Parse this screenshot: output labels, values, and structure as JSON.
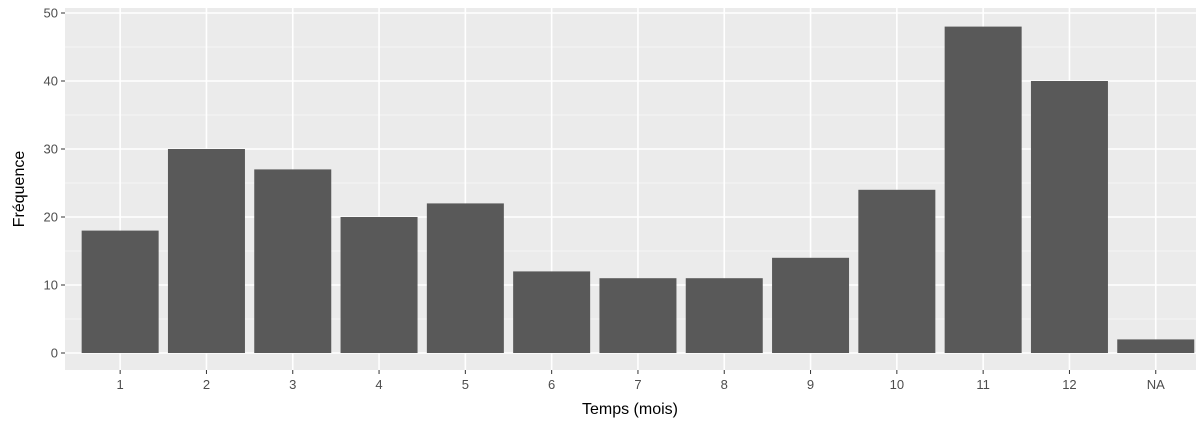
{
  "chart_data": {
    "type": "bar",
    "title": "",
    "xlabel": "Temps (mois)",
    "ylabel": "Fréquence",
    "categories": [
      "1",
      "2",
      "3",
      "4",
      "5",
      "6",
      "7",
      "8",
      "9",
      "10",
      "11",
      "12",
      "NA"
    ],
    "values": [
      18,
      30,
      27,
      20,
      22,
      12,
      11,
      11,
      14,
      24,
      48,
      40,
      2
    ],
    "ylim": [
      0,
      50
    ],
    "yticks": [
      0,
      10,
      20,
      30,
      40,
      50
    ],
    "grid": true,
    "legend": "none",
    "colors": {
      "bar": "#595959",
      "panel": "#ebebeb",
      "grid_major": "#ffffff",
      "grid_minor": "#f5f5f5"
    }
  }
}
